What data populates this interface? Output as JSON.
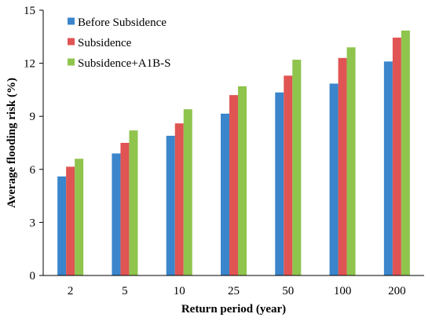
{
  "chart_data": {
    "type": "bar",
    "categories": [
      "2",
      "5",
      "10",
      "25",
      "50",
      "100",
      "200"
    ],
    "series": [
      {
        "name": "Before Subsidence",
        "color": "#3a85cb",
        "values": [
          5.6,
          6.9,
          7.9,
          9.15,
          10.35,
          10.85,
          12.1
        ]
      },
      {
        "name": "Subsidence",
        "color": "#e05454",
        "values": [
          6.15,
          7.5,
          8.6,
          10.2,
          11.3,
          12.3,
          13.45
        ]
      },
      {
        "name": "Subsidence+A1B-S",
        "color": "#8fc44d",
        "values": [
          6.6,
          8.2,
          9.4,
          10.7,
          12.2,
          12.9,
          13.85
        ]
      }
    ],
    "xlabel": "Return period (year)",
    "ylabel": "Average flooding risk (%)",
    "ylim": [
      0,
      15
    ],
    "yticks": [
      "0",
      "3",
      "6",
      "9",
      "12",
      "15"
    ],
    "grid": false,
    "legend_position": "top-left"
  }
}
